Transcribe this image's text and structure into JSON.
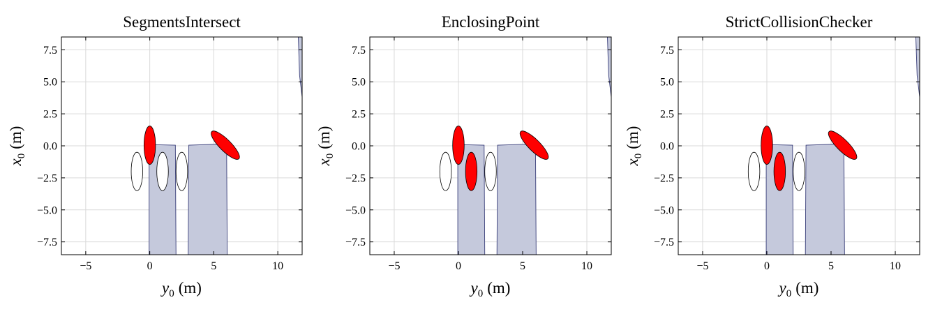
{
  "figure": {
    "colors": {
      "background": "#ffffff",
      "polygon_fill": "#c5c9dc",
      "polygon_stroke": "#3a3f7a",
      "vehicle_collision": "#ff0000",
      "vehicle_free": "#ffffff",
      "grid": "#d9d9d9"
    }
  },
  "chart_data": [
    {
      "type": "scatter",
      "title": "SegmentsIntersect",
      "xlabel": {
        "var": "y",
        "sub": "0",
        "unit": "(m)"
      },
      "ylabel": {
        "var": "x",
        "sub": "0",
        "unit": "(m)"
      },
      "xlim": [
        -6.9,
        11.9
      ],
      "ylim": [
        -8.5,
        8.5
      ],
      "xticks": [
        -5,
        0,
        5,
        10
      ],
      "xtick_labels": [
        "−5",
        "0",
        "5",
        "10"
      ],
      "yticks": [
        -7.5,
        -5.0,
        -2.5,
        0.0,
        2.5,
        5.0,
        7.5
      ],
      "ytick_labels": [
        "−7.5",
        "−5.0",
        "−2.5",
        "0.0",
        "2.5",
        "5.0",
        "7.5"
      ],
      "grid": true,
      "obstacles": [
        [
          [
            -0.05,
            -8.5
          ],
          [
            -0.05,
            0.1
          ],
          [
            2.0,
            0.05
          ],
          [
            2.05,
            -8.5
          ]
        ],
        [
          [
            3.0,
            -8.5
          ],
          [
            3.05,
            0.05
          ],
          [
            6.0,
            0.15
          ],
          [
            6.05,
            -8.5
          ]
        ],
        [
          [
            11.6,
            8.5
          ],
          [
            11.7,
            5.5
          ],
          [
            11.9,
            3.8
          ],
          [
            11.9,
            8.5
          ]
        ]
      ],
      "vehicles": [
        {
          "y": 0.0,
          "x": 0.05,
          "length": 3.0,
          "width": 0.45,
          "heading_deg": 0,
          "collision": true
        },
        {
          "y": 5.9,
          "x": 0.05,
          "length": 3.0,
          "width": 0.45,
          "heading_deg": 45,
          "collision": true
        },
        {
          "y": -1.0,
          "x": -2.0,
          "length": 3.0,
          "width": 0.45,
          "heading_deg": 0,
          "collision": false
        },
        {
          "y": 1.0,
          "x": -2.0,
          "length": 3.0,
          "width": 0.45,
          "heading_deg": 0,
          "collision": false
        },
        {
          "y": 2.5,
          "x": -2.0,
          "length": 3.0,
          "width": 0.45,
          "heading_deg": 0,
          "collision": false
        }
      ]
    },
    {
      "type": "scatter",
      "title": "EnclosingPoint",
      "xlabel": {
        "var": "y",
        "sub": "0",
        "unit": "(m)"
      },
      "ylabel": {
        "var": "x",
        "sub": "0",
        "unit": "(m)"
      },
      "xlim": [
        -6.9,
        11.9
      ],
      "ylim": [
        -8.5,
        8.5
      ],
      "xticks": [
        -5,
        0,
        5,
        10
      ],
      "xtick_labels": [
        "−5",
        "0",
        "5",
        "10"
      ],
      "yticks": [
        -7.5,
        -5.0,
        -2.5,
        0.0,
        2.5,
        5.0,
        7.5
      ],
      "ytick_labels": [
        "−7.5",
        "−5.0",
        "−2.5",
        "0.0",
        "2.5",
        "5.0",
        "7.5"
      ],
      "grid": true,
      "obstacles": [
        [
          [
            -0.05,
            -8.5
          ],
          [
            -0.05,
            0.1
          ],
          [
            2.0,
            0.05
          ],
          [
            2.05,
            -8.5
          ]
        ],
        [
          [
            3.0,
            -8.5
          ],
          [
            3.05,
            0.05
          ],
          [
            6.0,
            0.15
          ],
          [
            6.05,
            -8.5
          ]
        ],
        [
          [
            11.6,
            8.5
          ],
          [
            11.7,
            5.5
          ],
          [
            11.9,
            3.8
          ],
          [
            11.9,
            8.5
          ]
        ]
      ],
      "vehicles": [
        {
          "y": 0.0,
          "x": 0.05,
          "length": 3.0,
          "width": 0.45,
          "heading_deg": 0,
          "collision": true
        },
        {
          "y": 5.9,
          "x": 0.05,
          "length": 3.0,
          "width": 0.45,
          "heading_deg": 45,
          "collision": true
        },
        {
          "y": -1.0,
          "x": -2.0,
          "length": 3.0,
          "width": 0.45,
          "heading_deg": 0,
          "collision": false
        },
        {
          "y": 1.0,
          "x": -2.0,
          "length": 3.0,
          "width": 0.45,
          "heading_deg": 0,
          "collision": true
        },
        {
          "y": 2.5,
          "x": -2.0,
          "length": 3.0,
          "width": 0.45,
          "heading_deg": 0,
          "collision": false
        }
      ]
    },
    {
      "type": "scatter",
      "title": "StrictCollisionChecker",
      "xlabel": {
        "var": "y",
        "sub": "0",
        "unit": "(m)"
      },
      "ylabel": {
        "var": "x",
        "sub": "0",
        "unit": "(m)"
      },
      "xlim": [
        -6.9,
        11.9
      ],
      "ylim": [
        -8.5,
        8.5
      ],
      "xticks": [
        -5,
        0,
        5,
        10
      ],
      "xtick_labels": [
        "−5",
        "0",
        "5",
        "10"
      ],
      "yticks": [
        -7.5,
        -5.0,
        -2.5,
        0.0,
        2.5,
        5.0,
        7.5
      ],
      "ytick_labels": [
        "−7.5",
        "−5.0",
        "−2.5",
        "0.0",
        "2.5",
        "5.0",
        "7.5"
      ],
      "grid": true,
      "obstacles": [
        [
          [
            -0.05,
            -8.5
          ],
          [
            -0.05,
            0.1
          ],
          [
            2.0,
            0.05
          ],
          [
            2.05,
            -8.5
          ]
        ],
        [
          [
            3.0,
            -8.5
          ],
          [
            3.05,
            0.05
          ],
          [
            6.0,
            0.15
          ],
          [
            6.05,
            -8.5
          ]
        ],
        [
          [
            11.6,
            8.5
          ],
          [
            11.7,
            5.5
          ],
          [
            11.9,
            3.8
          ],
          [
            11.9,
            8.5
          ]
        ]
      ],
      "vehicles": [
        {
          "y": 0.0,
          "x": 0.05,
          "length": 3.0,
          "width": 0.45,
          "heading_deg": 0,
          "collision": true
        },
        {
          "y": 5.9,
          "x": 0.05,
          "length": 3.0,
          "width": 0.45,
          "heading_deg": 45,
          "collision": true
        },
        {
          "y": -1.0,
          "x": -2.0,
          "length": 3.0,
          "width": 0.45,
          "heading_deg": 0,
          "collision": false
        },
        {
          "y": 1.0,
          "x": -2.0,
          "length": 3.0,
          "width": 0.45,
          "heading_deg": 0,
          "collision": true
        },
        {
          "y": 2.5,
          "x": -2.0,
          "length": 3.0,
          "width": 0.45,
          "heading_deg": 0,
          "collision": false
        }
      ]
    }
  ]
}
